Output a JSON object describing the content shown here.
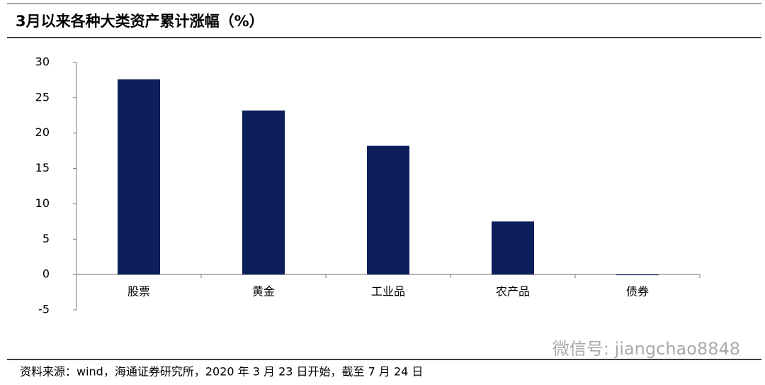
{
  "chart_data": {
    "type": "bar",
    "title": "3月以来各种大类资产累计涨幅（%）",
    "categories": [
      "股票",
      "黄金",
      "工业品",
      "农产品",
      "债券"
    ],
    "values": [
      27.6,
      23.2,
      18.2,
      7.5,
      -0.1
    ],
    "color": "#0c1f5b",
    "ylim": [
      -5,
      30
    ],
    "yticks": [
      -5,
      0,
      5,
      10,
      15,
      20,
      25,
      30
    ],
    "grid": false,
    "source": "资料来源：wind，海通证券研究所，2020 年 3 月 23 日开始，截至 7 月 24 日",
    "watermark": "微信号: jiangchao8848"
  }
}
